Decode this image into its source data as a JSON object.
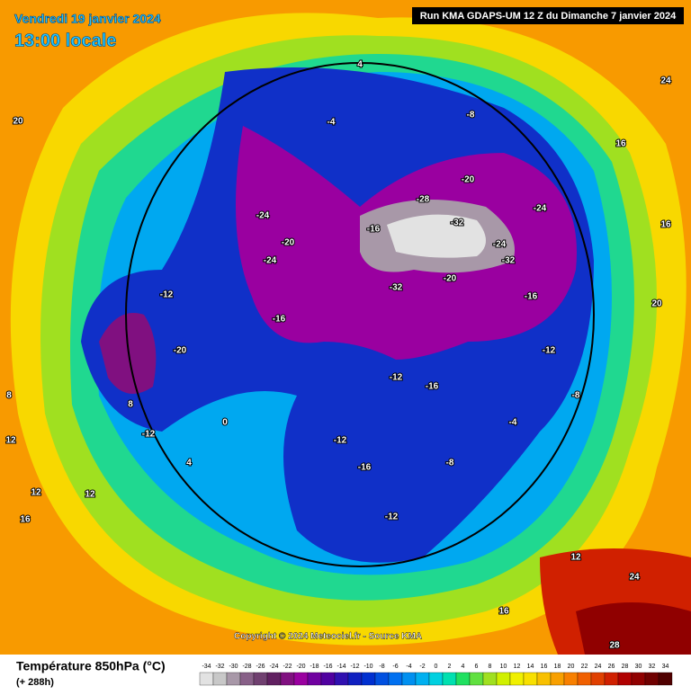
{
  "header": {
    "date": "Vendredi 19 janvier 2024",
    "time": "13:00 locale",
    "run": "Run KMA GDAPS-UM 12 Z du Dimanche 7 janvier 2024"
  },
  "copyright": "Copyright © 2024 Meteociel.fr - Source KMA",
  "legend": {
    "title": "Température 850hPa (°C)",
    "lead": "(+ 288h)",
    "ticks": [
      -34,
      -32,
      -30,
      -28,
      -26,
      -24,
      -22,
      -20,
      -18,
      -16,
      -14,
      -12,
      -10,
      -8,
      -6,
      -4,
      -2,
      0,
      2,
      4,
      6,
      8,
      10,
      12,
      14,
      16,
      18,
      20,
      22,
      24,
      26,
      28,
      30,
      32,
      34
    ],
    "colors": [
      "#e2e2e2",
      "#c8c8c8",
      "#a898a8",
      "#886088",
      "#704070",
      "#602060",
      "#801080",
      "#9a00a0",
      "#7000a0",
      "#5000a0",
      "#3010b0",
      "#1020c0",
      "#0030d0",
      "#0050e0",
      "#0070f0",
      "#0090f0",
      "#00b0f0",
      "#00d0e0",
      "#00e0b0",
      "#20e060",
      "#60e040",
      "#a0e020",
      "#d0f000",
      "#f0f000",
      "#f8e000",
      "#f8c000",
      "#f8a000",
      "#f88000",
      "#f06000",
      "#e04000",
      "#d02000",
      "#b00000",
      "#900000",
      "#700000",
      "#500000"
    ]
  },
  "map": {
    "contour_labels": [
      -32,
      -28,
      -32,
      -32,
      -24,
      -20,
      -24,
      -24,
      -20,
      -24,
      -20,
      -16,
      -16,
      -12,
      -16,
      -20,
      -12,
      -12,
      -16,
      -12,
      -8,
      -12,
      -16,
      -12,
      -8,
      -4,
      0,
      4,
      8,
      12,
      12,
      16,
      16,
      20,
      24,
      28,
      16,
      12,
      8,
      4,
      -4,
      -8,
      20,
      24,
      12,
      16
    ]
  }
}
